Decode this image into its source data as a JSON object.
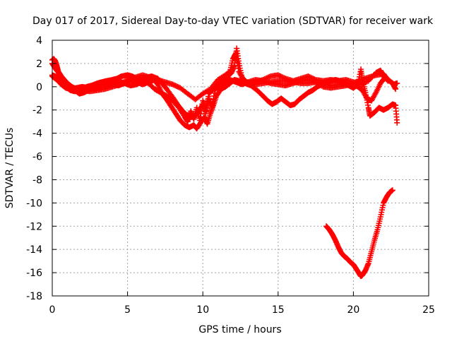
{
  "chart_data": {
    "type": "scatter",
    "title": "Day 017 of 2017, Sidereal Day-to-day VTEC variation (SDTVAR) for receiver wark",
    "xlabel": "GPS time / hours",
    "ylabel": "SDTVAR / TECUs",
    "xlim": [
      0,
      25
    ],
    "ylim": [
      -18,
      4
    ],
    "xticks": [
      0,
      5,
      10,
      15,
      20,
      25
    ],
    "yticks": [
      4,
      2,
      0,
      -2,
      -4,
      -6,
      -8,
      -10,
      -12,
      -14,
      -16,
      -18
    ],
    "xtick_labels": [
      "0",
      "5",
      "10",
      "15",
      "20",
      "25"
    ],
    "ytick_labels": [
      "4",
      "2",
      "0",
      "-2",
      "-4",
      "-6",
      "-8",
      "-10",
      "-12",
      "-14",
      "-16",
      "-18"
    ],
    "grid": true,
    "legend": "none",
    "marker": "plus",
    "color": "#ff0000",
    "series": [
      {
        "points": [
          [
            0.0,
            2.3
          ],
          [
            0.1,
            2.4
          ],
          [
            0.2,
            2.2
          ],
          [
            0.3,
            1.8
          ],
          [
            0.4,
            1.3
          ],
          [
            0.5,
            0.9
          ],
          [
            0.6,
            0.5
          ],
          [
            0.8,
            0.2
          ],
          [
            1.0,
            -0.1
          ],
          [
            1.2,
            -0.3
          ],
          [
            1.5,
            -0.4
          ],
          [
            1.8,
            -0.3
          ],
          [
            2.0,
            -0.2
          ],
          [
            2.3,
            0.0
          ],
          [
            2.6,
            0.1
          ],
          [
            3.0,
            0.3
          ],
          [
            3.3,
            0.4
          ],
          [
            3.6,
            0.5
          ],
          [
            4.0,
            0.6
          ],
          [
            4.3,
            0.7
          ],
          [
            4.6,
            0.9
          ],
          [
            5.0,
            1.0
          ],
          [
            5.3,
            0.9
          ],
          [
            5.6,
            0.7
          ],
          [
            6.0,
            0.6
          ],
          [
            6.3,
            0.8
          ],
          [
            6.6,
            0.9
          ],
          [
            7.0,
            0.7
          ],
          [
            7.3,
            0.3
          ],
          [
            7.6,
            -0.2
          ],
          [
            8.0,
            -0.9
          ],
          [
            8.3,
            -1.5
          ],
          [
            8.6,
            -2.0
          ],
          [
            8.9,
            -2.4
          ],
          [
            9.2,
            -2.6
          ],
          [
            9.5,
            -2.5
          ],
          [
            9.8,
            -2.0
          ],
          [
            10.0,
            -1.5
          ],
          [
            10.2,
            -2.3
          ],
          [
            10.4,
            -1.0
          ],
          [
            10.6,
            -1.8
          ],
          [
            10.8,
            -0.3
          ],
          [
            11.0,
            0.2
          ],
          [
            11.3,
            0.5
          ],
          [
            11.6,
            0.8
          ],
          [
            11.9,
            1.2
          ],
          [
            12.1,
            1.8
          ],
          [
            12.25,
            3.3
          ],
          [
            12.4,
            2.0
          ],
          [
            12.6,
            0.8
          ],
          [
            12.9,
            0.4
          ],
          [
            13.2,
            0.3
          ],
          [
            13.5,
            0.2
          ],
          [
            14.0,
            0.3
          ],
          [
            14.5,
            0.4
          ],
          [
            15.0,
            0.5
          ],
          [
            15.5,
            0.5
          ],
          [
            16.0,
            0.4
          ],
          [
            16.5,
            0.3
          ],
          [
            17.0,
            0.3
          ],
          [
            17.5,
            0.4
          ],
          [
            18.0,
            0.3
          ],
          [
            18.5,
            0.1
          ],
          [
            19.0,
            0.2
          ],
          [
            19.5,
            0.3
          ],
          [
            20.0,
            0.2
          ],
          [
            20.3,
            0.0
          ],
          [
            20.6,
            -0.3
          ],
          [
            20.9,
            -1.0
          ],
          [
            21.2,
            -1.2
          ],
          [
            21.5,
            -0.5
          ],
          [
            21.8,
            0.3
          ],
          [
            22.1,
            0.8
          ],
          [
            22.4,
            0.5
          ],
          [
            22.7,
            0.2
          ],
          [
            22.9,
            0.3
          ]
        ]
      },
      {
        "points": [
          [
            0.0,
            1.0
          ],
          [
            0.2,
            0.9
          ],
          [
            0.4,
            0.7
          ],
          [
            0.6,
            0.5
          ],
          [
            0.9,
            0.3
          ],
          [
            1.2,
            0.1
          ],
          [
            1.5,
            -0.3
          ],
          [
            1.8,
            -0.6
          ],
          [
            2.1,
            -0.5
          ],
          [
            2.4,
            -0.3
          ],
          [
            2.8,
            -0.1
          ],
          [
            3.2,
            0.0
          ],
          [
            3.6,
            0.1
          ],
          [
            4.0,
            0.2
          ],
          [
            4.4,
            0.1
          ],
          [
            4.8,
            0.3
          ],
          [
            5.2,
            0.6
          ],
          [
            5.6,
            0.4
          ],
          [
            6.0,
            0.2
          ],
          [
            6.4,
            0.4
          ],
          [
            6.8,
            0.6
          ],
          [
            7.0,
            0.2
          ],
          [
            7.3,
            -0.6
          ],
          [
            7.6,
            -1.1
          ],
          [
            7.9,
            -1.7
          ],
          [
            8.2,
            -2.3
          ],
          [
            8.5,
            -2.9
          ],
          [
            8.8,
            -3.3
          ],
          [
            9.1,
            -3.5
          ],
          [
            9.4,
            -3.3
          ],
          [
            9.6,
            -3.6
          ],
          [
            9.9,
            -3.0
          ],
          [
            10.1,
            -2.6
          ],
          [
            10.3,
            -3.2
          ],
          [
            10.5,
            -2.3
          ],
          [
            10.7,
            -1.6
          ],
          [
            10.9,
            -0.8
          ],
          [
            11.2,
            -0.2
          ],
          [
            11.5,
            0.0
          ],
          [
            11.8,
            0.3
          ],
          [
            12.1,
            0.6
          ],
          [
            12.4,
            0.5
          ],
          [
            12.8,
            0.3
          ],
          [
            13.2,
            0.1
          ],
          [
            13.6,
            -0.3
          ],
          [
            14.0,
            -0.8
          ],
          [
            14.3,
            -1.2
          ],
          [
            14.6,
            -1.5
          ],
          [
            14.9,
            -1.3
          ],
          [
            15.2,
            -1.0
          ],
          [
            15.5,
            -1.3
          ],
          [
            15.8,
            -1.6
          ],
          [
            16.1,
            -1.5
          ],
          [
            16.4,
            -1.1
          ],
          [
            16.7,
            -0.8
          ],
          [
            17.0,
            -0.5
          ],
          [
            17.3,
            -0.3
          ],
          [
            17.6,
            0.0
          ],
          [
            17.9,
            0.2
          ],
          [
            18.2,
            0.4
          ],
          [
            18.5,
            0.5
          ],
          [
            18.8,
            0.6
          ],
          [
            19.1,
            0.5
          ],
          [
            19.4,
            0.3
          ],
          [
            19.7,
            0.1
          ],
          [
            20.0,
            -0.1
          ],
          [
            20.3,
            0.2
          ],
          [
            20.5,
            1.5
          ],
          [
            20.6,
            0.5
          ],
          [
            20.8,
            -0.5
          ],
          [
            21.0,
            -1.8
          ],
          [
            21.1,
            -2.5
          ],
          [
            21.4,
            -2.2
          ],
          [
            21.7,
            -1.8
          ],
          [
            22.0,
            -2.0
          ],
          [
            22.3,
            -1.8
          ],
          [
            22.6,
            -1.5
          ],
          [
            22.8,
            -1.6
          ],
          [
            22.9,
            -3.1
          ]
        ]
      },
      {
        "points": [
          [
            0.0,
            0.9
          ],
          [
            0.3,
            0.6
          ],
          [
            0.6,
            0.2
          ],
          [
            0.9,
            -0.1
          ],
          [
            1.2,
            -0.2
          ],
          [
            1.6,
            -0.1
          ],
          [
            2.0,
            0.0
          ],
          [
            2.4,
            -0.1
          ],
          [
            2.8,
            -0.2
          ],
          [
            3.2,
            -0.1
          ],
          [
            3.6,
            0.1
          ],
          [
            4.0,
            0.3
          ],
          [
            4.4,
            0.5
          ],
          [
            4.8,
            0.3
          ],
          [
            5.2,
            0.1
          ],
          [
            5.6,
            0.2
          ],
          [
            6.0,
            0.5
          ],
          [
            6.4,
            0.3
          ],
          [
            6.8,
            -0.2
          ],
          [
            7.2,
            -0.5
          ],
          [
            7.6,
            -0.8
          ],
          [
            8.0,
            -1.2
          ],
          [
            8.4,
            -1.8
          ],
          [
            8.8,
            -2.6
          ],
          [
            9.0,
            -3.0
          ],
          [
            9.2,
            -2.1
          ],
          [
            9.4,
            -2.8
          ],
          [
            9.6,
            -1.8
          ],
          [
            9.8,
            -2.9
          ],
          [
            10.0,
            -1.2
          ],
          [
            10.2,
            -2.0
          ],
          [
            10.4,
            -0.6
          ],
          [
            10.7,
            -0.2
          ],
          [
            11.0,
            0.0
          ],
          [
            11.4,
            0.3
          ],
          [
            11.8,
            0.6
          ],
          [
            12.2,
            0.4
          ],
          [
            12.6,
            0.2
          ],
          [
            13.0,
            0.4
          ],
          [
            13.5,
            0.6
          ],
          [
            14.0,
            0.5
          ],
          [
            14.5,
            0.3
          ],
          [
            15.0,
            0.2
          ],
          [
            15.5,
            0.1
          ],
          [
            16.0,
            0.3
          ],
          [
            16.5,
            0.5
          ],
          [
            17.0,
            0.6
          ],
          [
            17.5,
            0.4
          ],
          [
            18.0,
            0.0
          ],
          [
            18.5,
            -0.1
          ],
          [
            19.0,
            0.0
          ],
          [
            19.5,
            0.1
          ],
          [
            20.0,
            0.3
          ],
          [
            20.5,
            0.6
          ],
          [
            21.0,
            0.8
          ],
          [
            21.5,
            1.0
          ],
          [
            22.0,
            1.1
          ],
          [
            22.3,
            0.6
          ],
          [
            22.6,
            0.3
          ],
          [
            22.8,
            -0.2
          ]
        ]
      },
      {
        "points": [
          [
            0.0,
            2.0
          ],
          [
            0.15,
            1.7
          ],
          [
            0.3,
            1.4
          ],
          [
            0.45,
            1.2
          ],
          [
            0.6,
            0.9
          ],
          [
            0.8,
            0.6
          ],
          [
            1.0,
            0.3
          ],
          [
            1.3,
            0.0
          ],
          [
            1.6,
            -0.2
          ],
          [
            2.0,
            -0.3
          ],
          [
            2.5,
            -0.4
          ],
          [
            3.0,
            -0.3
          ],
          [
            3.5,
            -0.2
          ],
          [
            4.0,
            0.0
          ],
          [
            4.5,
            0.2
          ],
          [
            5.0,
            0.6
          ],
          [
            5.5,
            0.8
          ],
          [
            6.0,
            1.0
          ],
          [
            6.5,
            0.8
          ],
          [
            7.0,
            0.6
          ],
          [
            7.5,
            0.4
          ],
          [
            8.0,
            0.2
          ],
          [
            8.5,
            -0.1
          ],
          [
            9.0,
            -0.6
          ],
          [
            9.5,
            -1.1
          ],
          [
            10.0,
            -0.6
          ],
          [
            10.5,
            -0.2
          ],
          [
            11.0,
            0.6
          ],
          [
            11.5,
            1.0
          ],
          [
            11.8,
            1.3
          ],
          [
            12.0,
            2.4
          ],
          [
            12.2,
            2.9
          ],
          [
            12.4,
            1.3
          ],
          [
            12.7,
            0.6
          ],
          [
            13.0,
            0.3
          ],
          [
            13.5,
            0.4
          ],
          [
            14.0,
            0.6
          ],
          [
            14.5,
            0.9
          ],
          [
            15.0,
            1.0
          ],
          [
            15.5,
            0.7
          ],
          [
            16.0,
            0.5
          ],
          [
            16.5,
            0.7
          ],
          [
            17.0,
            0.9
          ],
          [
            17.5,
            0.6
          ],
          [
            18.0,
            0.5
          ],
          [
            18.5,
            0.6
          ],
          [
            19.0,
            0.5
          ],
          [
            19.5,
            0.6
          ],
          [
            20.0,
            0.4
          ],
          [
            20.5,
            0.2
          ],
          [
            21.0,
            0.5
          ],
          [
            21.5,
            1.2
          ],
          [
            21.8,
            1.4
          ],
          [
            22.0,
            0.9
          ],
          [
            22.3,
            0.5
          ]
        ]
      },
      {
        "points": [
          [
            18.2,
            -12.0
          ],
          [
            18.4,
            -12.3
          ],
          [
            18.6,
            -12.7
          ],
          [
            18.8,
            -13.2
          ],
          [
            19.0,
            -13.8
          ],
          [
            19.2,
            -14.3
          ],
          [
            19.4,
            -14.6
          ],
          [
            19.6,
            -14.8
          ],
          [
            19.8,
            -15.1
          ],
          [
            20.0,
            -15.3
          ],
          [
            20.2,
            -15.7
          ],
          [
            20.4,
            -16.1
          ],
          [
            20.5,
            -16.3
          ],
          [
            20.6,
            -16.2
          ],
          [
            20.8,
            -15.8
          ],
          [
            21.0,
            -15.2
          ],
          [
            21.2,
            -14.2
          ],
          [
            21.4,
            -13.2
          ],
          [
            21.6,
            -12.3
          ],
          [
            21.8,
            -11.2
          ],
          [
            22.0,
            -10.0
          ],
          [
            22.2,
            -9.5
          ],
          [
            22.4,
            -9.1
          ],
          [
            22.6,
            -8.9
          ]
        ]
      }
    ]
  }
}
